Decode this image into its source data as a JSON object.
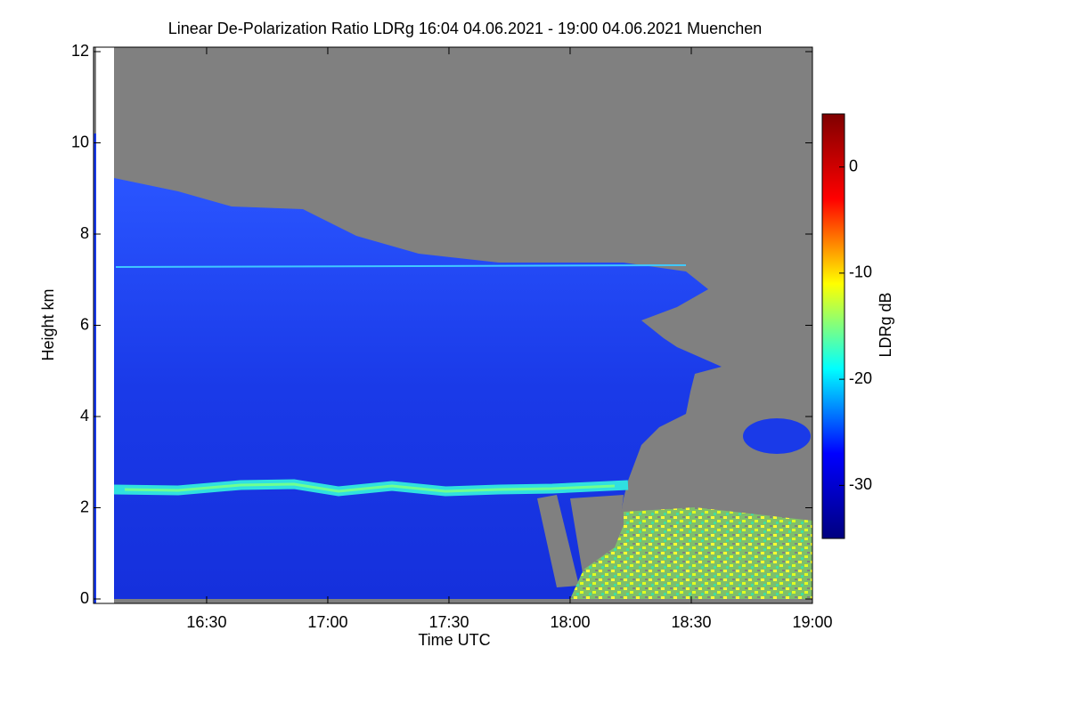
{
  "chart_data": {
    "type": "heatmap",
    "title": "Linear De-Polarization Ratio LDRg   16:04 04.06.2021 - 19:00 04.06.2021 Muenchen",
    "x_label": "Time UTC",
    "y_label": "Height km",
    "xlim": [
      962,
      1140
    ],
    "xticks": [
      {
        "value": 990,
        "label": "16:30"
      },
      {
        "value": 1020,
        "label": "17:00"
      },
      {
        "value": 1050,
        "label": "17:30"
      },
      {
        "value": 1080,
        "label": "18:00"
      },
      {
        "value": 1110,
        "label": "18:30"
      },
      {
        "value": 1140,
        "label": "19:00"
      }
    ],
    "ylim": [
      0,
      12
    ],
    "yticks": [
      0,
      2,
      4,
      6,
      8,
      10,
      12
    ],
    "colorbar_label": "LDRg dB",
    "clim": [
      -35,
      5
    ],
    "cticks": [
      -30,
      -20,
      -10,
      0
    ],
    "colormap": [
      "#00007f",
      "#0000ff",
      "#00ffff",
      "#ffff00",
      "#ff0000",
      "#7f0000"
    ],
    "background_color": "#808080"
  }
}
